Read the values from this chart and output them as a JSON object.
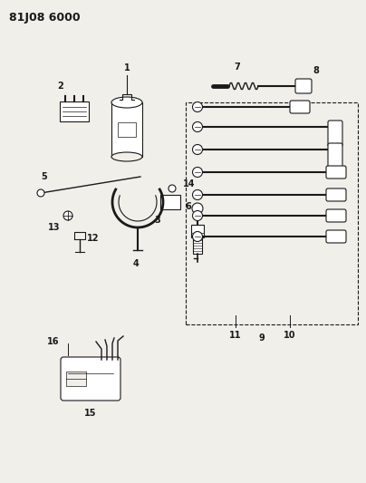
{
  "title": "81J08 6000",
  "bg_color": "#f0efea",
  "line_color": "#1a1a1a",
  "text_color": "#1a1a1a",
  "figsize": [
    4.04,
    5.33
  ],
  "dpi": 100
}
